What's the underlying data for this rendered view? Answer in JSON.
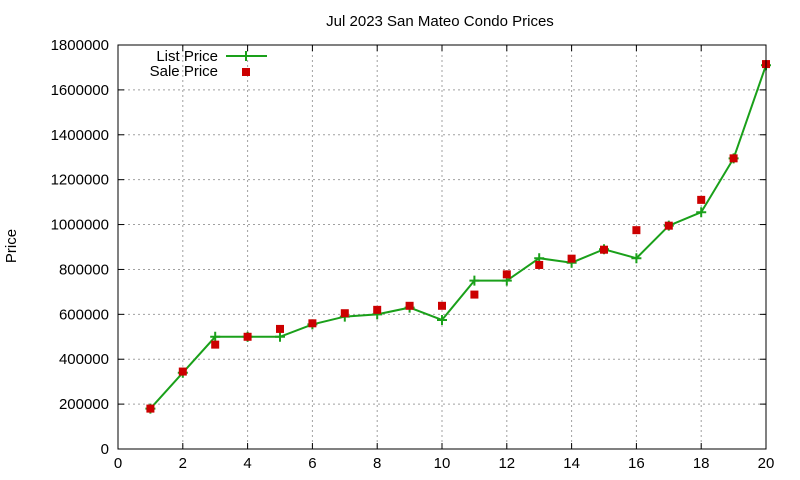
{
  "chart_data": {
    "type": "line",
    "title": "Jul 2023 San Mateo Condo Prices",
    "xlabel": "",
    "ylabel": "Price",
    "xlim": [
      0,
      20
    ],
    "ylim": [
      0,
      1800000
    ],
    "xticks": [
      "0",
      "2",
      "4",
      "6",
      "8",
      "10",
      "12",
      "14",
      "16",
      "18",
      "20"
    ],
    "yticks": [
      "0",
      "200000",
      "400000",
      "600000",
      "800000",
      "1000000",
      "1200000",
      "1400000",
      "1600000",
      "1800000"
    ],
    "grid": true,
    "legend_position": "top-left",
    "series": [
      {
        "name": "List Price",
        "style": "line-with-plus-markers",
        "color": "#1aa01a",
        "x": [
          1,
          2,
          3,
          4,
          5,
          6,
          7,
          8,
          9,
          10,
          11,
          12,
          13,
          14,
          15,
          16,
          17,
          18,
          19,
          20
        ],
        "y": [
          180000,
          340000,
          500000,
          500000,
          500000,
          555000,
          590000,
          600000,
          630000,
          575000,
          750000,
          750000,
          850000,
          830000,
          890000,
          850000,
          995000,
          1055000,
          1295000,
          1710000
        ]
      },
      {
        "name": "Sale Price",
        "style": "square-markers",
        "color": "#cc0000",
        "x": [
          1,
          2,
          3,
          4,
          5,
          6,
          7,
          8,
          9,
          10,
          11,
          12,
          13,
          14,
          15,
          16,
          17,
          18,
          19,
          20
        ],
        "y": [
          180000,
          345000,
          465000,
          500000,
          535000,
          560000,
          605000,
          620000,
          638000,
          638000,
          688000,
          778000,
          820000,
          848000,
          888000,
          975000,
          995000,
          1110000,
          1295000,
          1715000
        ]
      }
    ]
  }
}
